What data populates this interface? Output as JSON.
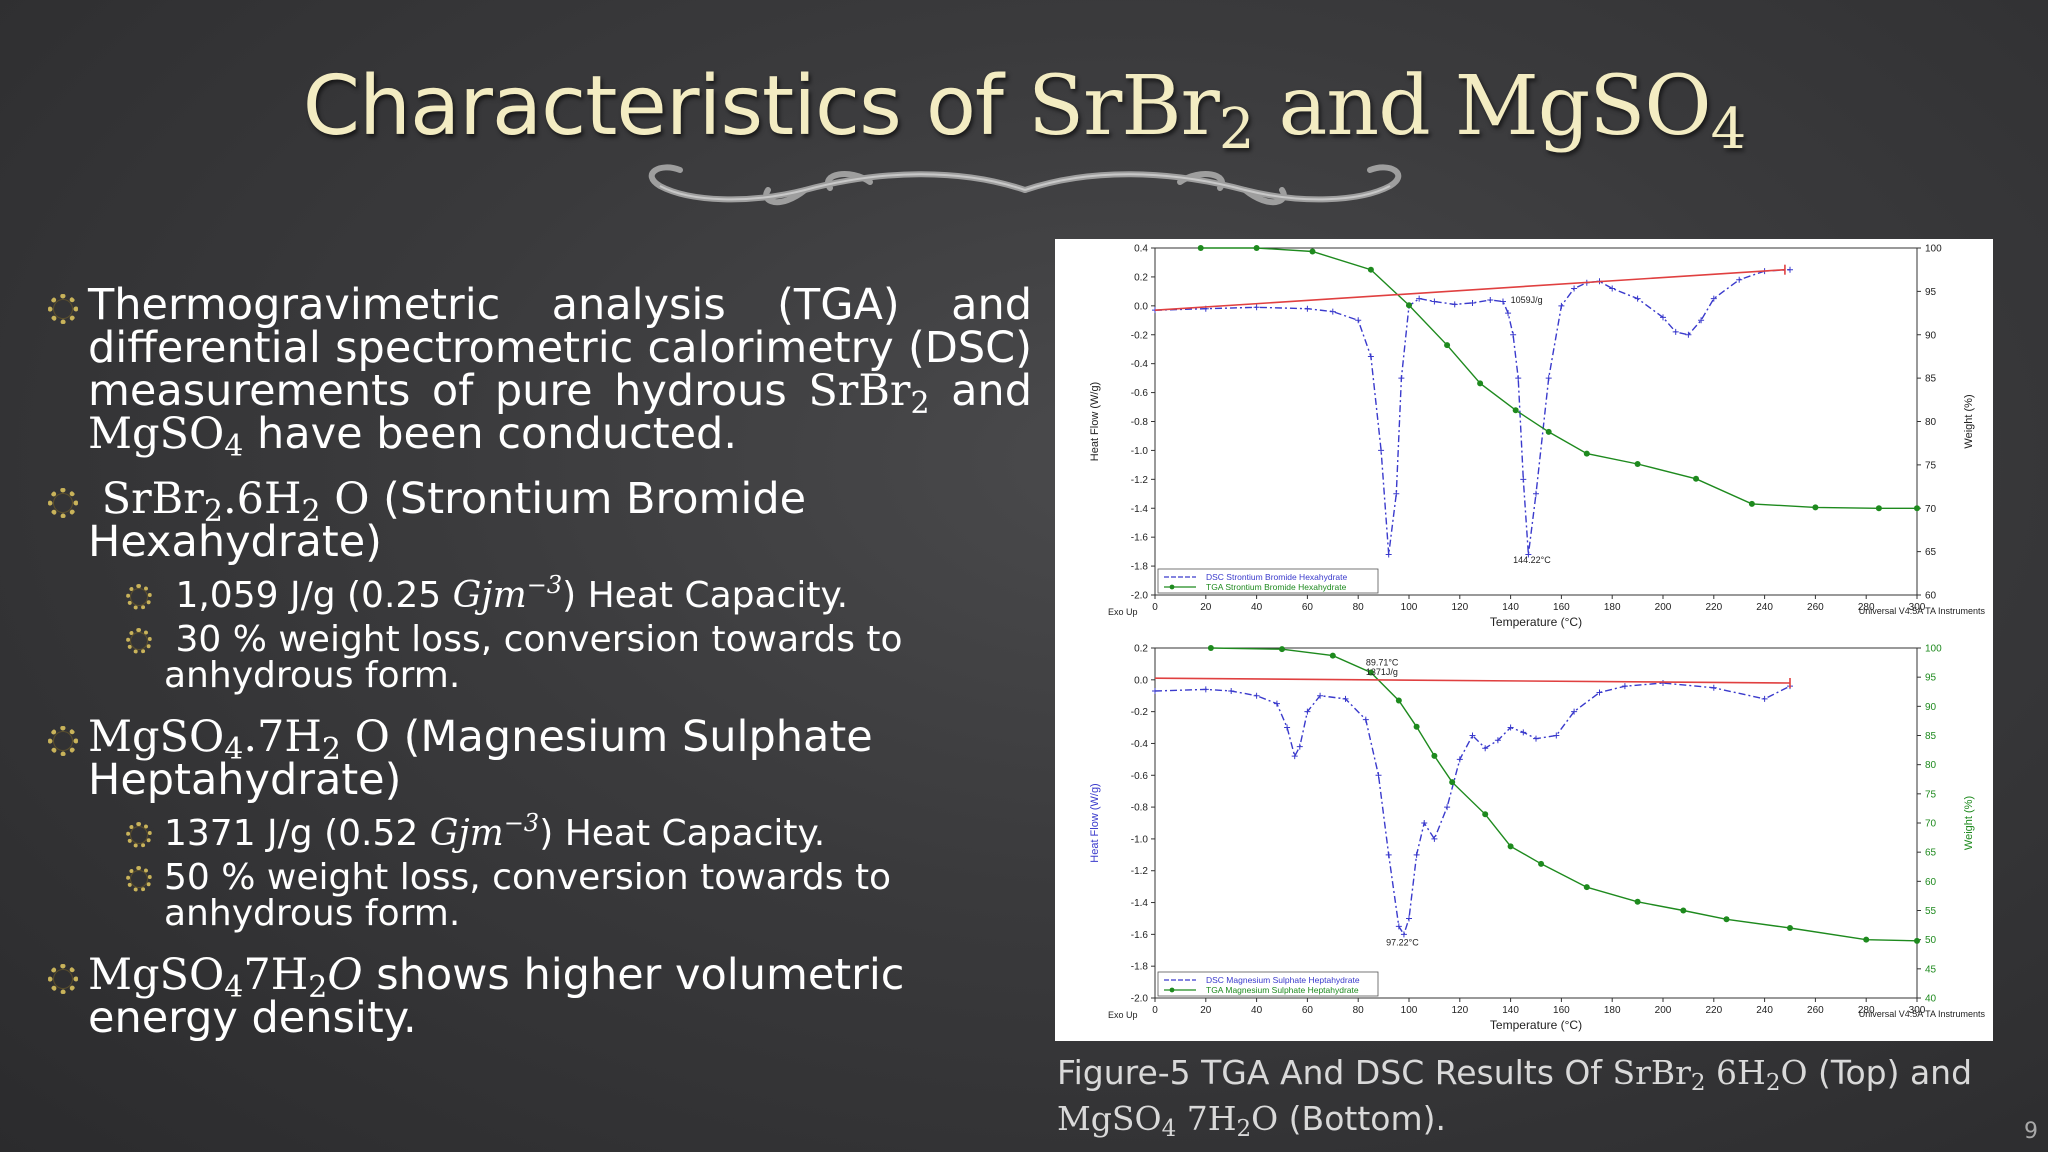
{
  "slide": {
    "title_prefix": "Characteristics of ",
    "title_srbr": "SrBr",
    "title_sub2": "2",
    "title_and": " and ",
    "title_mgso": "MgSO",
    "title_sub4": "4",
    "page_number": "9"
  },
  "bullets": {
    "b1": {
      "text1": "Thermogravimetric analysis (TGA) and differential spectrometric calorimetry (DSC) measurements of pure hydrous ",
      "srbr": "SrBr",
      "sub2": "2",
      "and": " and ",
      "mgso": "MgSO",
      "sub4": "4",
      "text2": " have been conducted."
    },
    "b2": {
      "f1": "SrBr",
      "f1sub": "2",
      "f2": ".6H",
      "f2sub": "2",
      "f3": " O",
      "text": " (Strontium Bromide Hexahydrate)",
      "s1": {
        "pre": "1,059 J/g (0.25 ",
        "unit": "Gjm",
        "exp": "−3",
        "post": ") Heat Capacity."
      },
      "s2": "30 % weight loss, conversion towards to anhydrous form."
    },
    "b3": {
      "f1": "MgSO",
      "f1sub": "4",
      "f2": ".7H",
      "f2sub": "2",
      "f3": " O",
      "text": " (Magnesium Sulphate Heptahydrate)",
      "s1": {
        "pre": "1371 J/g (0.52 ",
        "unit": "Gjm",
        "exp": "−3",
        "post": ") Heat Capacity."
      },
      "s2": "50 % weight loss, conversion towards to anhydrous form."
    },
    "b4": {
      "f1": "MgSO",
      "f1sub": "4",
      "f2": "7H",
      "f2sub": "2",
      "f3": "O",
      "text": " shows higher volumetric energy density."
    }
  },
  "caption": {
    "pre": "Figure-5 TGA And DSC Results Of ",
    "f1": "SrBr",
    "f1sub": "2",
    "f2": " 6H",
    "f2sub": "2",
    "f3": "O",
    "mid": " (Top) and ",
    "f4": "MgSO",
    "f4sub": "4",
    "f5": " 7H",
    "f5sub": "2",
    "f6": "O",
    "post": " (Bottom)."
  },
  "colors": {
    "title": "#f3ecc2",
    "bullet_ring": "#c9b35a",
    "dsc": "#3a3acc",
    "tga": "#1e8a1e",
    "baseline": "#e04040",
    "caption": "#d9d9d9"
  },
  "chart_data": [
    {
      "type": "line",
      "title": "",
      "xlabel": "Temperature (°C)",
      "ylabel": "Heat Flow (W/g)",
      "y2label": "Weight (%)",
      "exo_label": "Exo Up",
      "instrument": "Universal V4.5A TA Instruments",
      "xlim": [
        0,
        300
      ],
      "ylim": [
        -2.0,
        0.4
      ],
      "y2lim": [
        60,
        100
      ],
      "x_ticks": [
        0,
        20,
        40,
        60,
        80,
        100,
        120,
        140,
        160,
        180,
        200,
        220,
        240,
        260,
        280,
        300
      ],
      "y_ticks": [
        0.4,
        0.2,
        0.0,
        -0.2,
        -0.4,
        -0.6,
        -0.8,
        -1.0,
        -1.2,
        -1.4,
        -1.6,
        -1.8,
        -2.0
      ],
      "y2_ticks": [
        100,
        95,
        90,
        85,
        80,
        75,
        70,
        65,
        60
      ],
      "annotations": [
        {
          "text": "1059J/g",
          "x": 140,
          "y": 0.02
        },
        {
          "text": "144.22°C",
          "x": 141,
          "y": -1.78
        }
      ],
      "series": [
        {
          "name": "DSC  Strontium Bromide Hexahydrate",
          "axis": "left",
          "marker": "+",
          "x": [
            0,
            20,
            40,
            60,
            70,
            80,
            85,
            89,
            92,
            95,
            97,
            100,
            104,
            110,
            118,
            125,
            132,
            137,
            139,
            141,
            143,
            145,
            147,
            150,
            155,
            160,
            165,
            170,
            175,
            180,
            190,
            200,
            205,
            210,
            215,
            220,
            230,
            240,
            250
          ],
          "y": [
            -0.03,
            -0.02,
            -0.01,
            -0.02,
            -0.04,
            -0.1,
            -0.35,
            -1.0,
            -1.72,
            -1.3,
            -0.5,
            0.0,
            0.05,
            0.03,
            0.01,
            0.02,
            0.04,
            0.03,
            -0.05,
            -0.2,
            -0.5,
            -1.2,
            -1.72,
            -1.3,
            -0.5,
            0.0,
            0.12,
            0.16,
            0.17,
            0.12,
            0.05,
            -0.08,
            -0.18,
            -0.2,
            -0.1,
            0.05,
            0.18,
            0.24,
            0.25
          ]
        },
        {
          "name": "TGA  Strontium Bromide Hexahydrate",
          "axis": "right",
          "marker": "circle",
          "x": [
            18,
            40,
            62,
            85,
            100,
            115,
            128,
            142,
            155,
            170,
            190,
            213,
            235,
            260,
            285,
            300
          ],
          "y": [
            100,
            100,
            99.6,
            97.5,
            93.4,
            88.8,
            84.4,
            81.3,
            78.8,
            76.3,
            75.1,
            73.4,
            70.5,
            70.1,
            70.0,
            70.0
          ]
        },
        {
          "name": "baseline",
          "axis": "left",
          "marker": "none",
          "x": [
            0,
            248
          ],
          "y": [
            -0.03,
            0.25
          ]
        }
      ]
    },
    {
      "type": "line",
      "title": "",
      "xlabel": "Temperature (°C)",
      "ylabel": "Heat Flow (W/g)",
      "y2label": "Weight (%)",
      "exo_label": "Exo Up",
      "instrument": "Universal V4.5A TA Instruments",
      "xlim": [
        0,
        300
      ],
      "ylim": [
        -2.0,
        0.2
      ],
      "y2lim": [
        40,
        100
      ],
      "x_ticks": [
        0,
        20,
        40,
        60,
        80,
        100,
        120,
        140,
        160,
        180,
        200,
        220,
        240,
        260,
        280,
        300
      ],
      "y_ticks": [
        0.2,
        0.0,
        -0.2,
        -0.4,
        -0.6,
        -0.8,
        -1.0,
        -1.2,
        -1.4,
        -1.6,
        -1.8,
        -2.0
      ],
      "y2_ticks": [
        100,
        95,
        90,
        85,
        80,
        75,
        70,
        65,
        60,
        55,
        50,
        45,
        40
      ],
      "annotations": [
        {
          "text": "89.71°C",
          "x": 83,
          "y": 0.09
        },
        {
          "text": "1371J/g",
          "x": 83,
          "y": 0.03
        },
        {
          "text": "97.22°C",
          "x": 91,
          "y": -1.67
        }
      ],
      "series": [
        {
          "name": "DSC  Magnesium Sulphate Heptahydrate",
          "axis": "left",
          "marker": "+",
          "x": [
            0,
            20,
            30,
            40,
            48,
            52,
            55,
            57,
            60,
            65,
            75,
            83,
            88,
            92,
            96,
            98,
            100,
            103,
            106,
            110,
            115,
            120,
            125,
            130,
            135,
            140,
            145,
            150,
            158,
            165,
            175,
            185,
            200,
            220,
            240,
            250
          ],
          "y": [
            -0.07,
            -0.06,
            -0.07,
            -0.1,
            -0.15,
            -0.3,
            -0.48,
            -0.42,
            -0.2,
            -0.1,
            -0.12,
            -0.25,
            -0.6,
            -1.1,
            -1.55,
            -1.6,
            -1.5,
            -1.1,
            -0.9,
            -1.0,
            -0.8,
            -0.5,
            -0.35,
            -0.43,
            -0.38,
            -0.3,
            -0.33,
            -0.37,
            -0.35,
            -0.2,
            -0.08,
            -0.04,
            -0.02,
            -0.05,
            -0.12,
            -0.04
          ]
        },
        {
          "name": "TGA  Magnesium Sulphate Heptahydrate",
          "axis": "right",
          "marker": "circle",
          "x": [
            22,
            50,
            70,
            85,
            96,
            103,
            110,
            117,
            130,
            140,
            152,
            170,
            190,
            208,
            225,
            250,
            280,
            300
          ],
          "y": [
            100,
            99.8,
            98.7,
            95.8,
            91,
            86.5,
            81.5,
            77,
            71.5,
            66,
            63,
            59,
            56.5,
            55,
            53.5,
            52,
            50,
            49.8
          ]
        },
        {
          "name": "baseline",
          "axis": "left",
          "marker": "none",
          "x": [
            0,
            250
          ],
          "y": [
            0.01,
            -0.02
          ]
        }
      ]
    }
  ]
}
